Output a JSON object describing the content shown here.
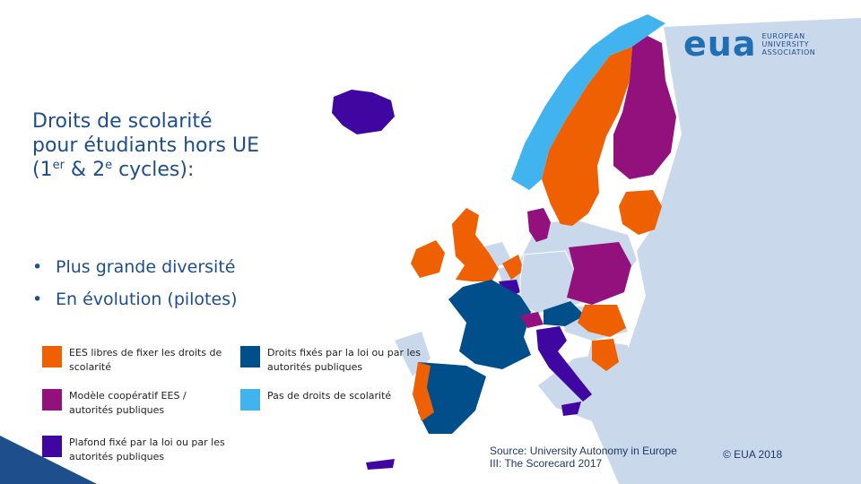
{
  "title": {
    "line1": "Droits de scolarité",
    "line2": "pour étudiants hors UE",
    "line3_open": "(1",
    "line3_sup1": "er",
    "line3_mid": " & 2",
    "line3_sup2": "e",
    "line3_close": " cycles):"
  },
  "bullets": [
    "Plus grande diversité",
    "En évolution (pilotes)"
  ],
  "legend": [
    {
      "text": "EES libres de fixer les droits de scolarité",
      "color": "#ee6002"
    },
    {
      "text": "Droits fixés par la loi ou par les autorités publiques",
      "color": "#004f8b"
    },
    {
      "text": "Modèle coopératif EES / autorités publiques",
      "color": "#93117d"
    },
    {
      "text": "Pas de droits de scolarité",
      "color": "#41b4f0"
    },
    {
      "text": "Plafond fixé par la loi ou par les autorités publiques",
      "color": "#3f06a2"
    }
  ],
  "logo": {
    "mark": "eua",
    "line1": "EUROPEAN",
    "line2": "UNIVERSITY",
    "line3": "ASSOCIATION"
  },
  "source": "Source: University Autonomy in Europe III: The Scorecard 2017",
  "copyright": "© EUA 2018",
  "colors": {
    "other_countries": "#c9d8ea",
    "title_blue": "#1f4e8c",
    "accent_blue": "#1f6fb5"
  }
}
